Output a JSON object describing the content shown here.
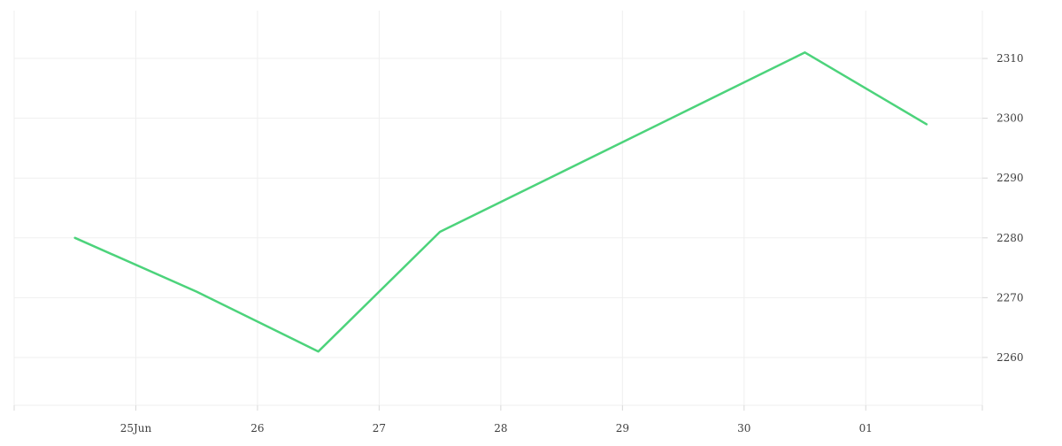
{
  "colors": {
    "line": "#4cd37b",
    "grid": "#efefef",
    "text": "#3f3f3f"
  },
  "chart_data": {
    "type": "line",
    "title": "",
    "xlabel": "",
    "ylabel": "",
    "x_tick_labels": [
      "25Jun",
      "26",
      "27",
      "28",
      "29",
      "30",
      "01"
    ],
    "y_tick_labels": [
      "2260",
      "2270",
      "2280",
      "2290",
      "2300",
      "2310"
    ],
    "y_ticks": [
      2260,
      2270,
      2280,
      2290,
      2300,
      2310
    ],
    "ylim": [
      2252,
      2318
    ],
    "xlim": [
      "2024-06-24 00:00",
      "2024-07-01 23:00"
    ],
    "grid": true,
    "y_axis_side": "right",
    "series": [
      {
        "x": [
          "2024-06-24 12:00",
          "2024-06-25 12:00",
          "2024-06-26 12:00",
          "2024-06-27 12:00",
          "2024-06-28 12:00",
          "2024-06-29 12:00",
          "2024-06-30 12:00",
          "2024-07-01 12:00"
        ],
        "values": [
          2280,
          2271,
          2261,
          2281,
          2291,
          2301,
          2311,
          2299
        ]
      }
    ]
  }
}
